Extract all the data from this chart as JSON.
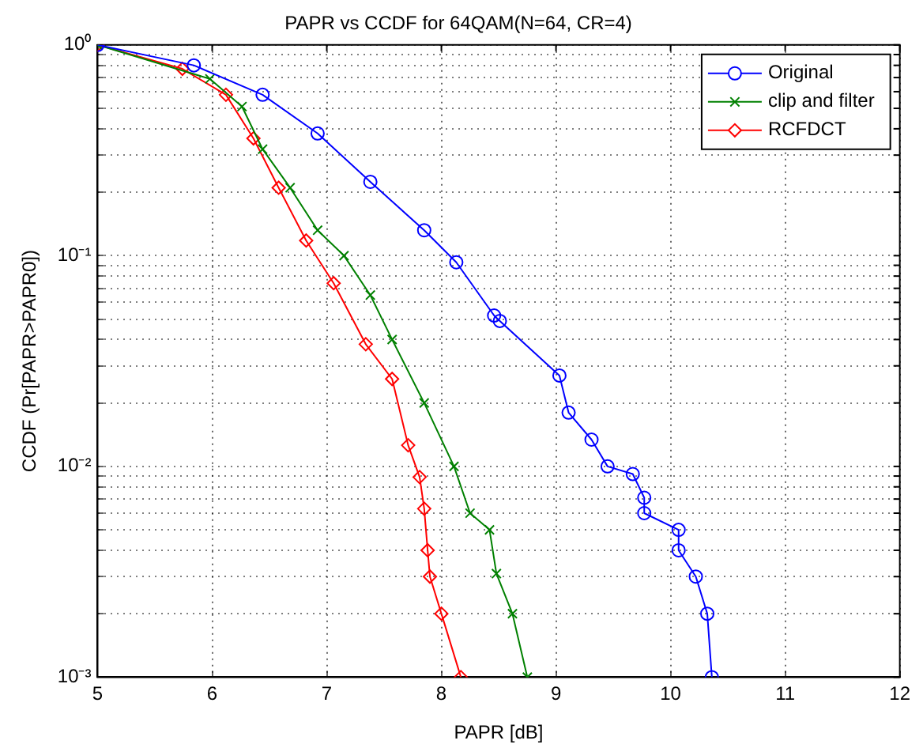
{
  "chart_data": {
    "type": "line",
    "title": "PAPR vs CCDF for 64QAM(N=64, CR=4)",
    "xlabel": "PAPR [dB]",
    "ylabel": "CCDF (Pr[PAPR>PAPR0])",
    "log": "y",
    "grid": true,
    "legend": "top right",
    "line_style": "solid",
    "xlim": [
      5,
      12
    ],
    "xticks": [
      5,
      6,
      7,
      8,
      9,
      10,
      11,
      12
    ],
    "ylim": [
      0.001,
      1
    ],
    "yticks": [
      {
        "value": 0.001,
        "label": "10⁻³"
      },
      {
        "value": 0.002,
        "label": null
      },
      {
        "value": 0.003,
        "label": null
      },
      {
        "value": 0.004,
        "label": null
      },
      {
        "value": 0.005,
        "label": null
      },
      {
        "value": 0.006,
        "label": null
      },
      {
        "value": 0.007,
        "label": null
      },
      {
        "value": 0.008,
        "label": null
      },
      {
        "value": 0.009,
        "label": null
      },
      {
        "value": 0.01,
        "label": "10⁻²"
      },
      {
        "value": 0.02,
        "label": null
      },
      {
        "value": 0.03,
        "label": null
      },
      {
        "value": 0.04,
        "label": null
      },
      {
        "value": 0.05,
        "label": null
      },
      {
        "value": 0.06,
        "label": null
      },
      {
        "value": 0.07,
        "label": null
      },
      {
        "value": 0.08,
        "label": null
      },
      {
        "value": 0.09,
        "label": null
      },
      {
        "value": 0.1,
        "label": "10⁻¹"
      },
      {
        "value": 0.2,
        "label": null
      },
      {
        "value": 0.3,
        "label": null
      },
      {
        "value": 0.4,
        "label": null
      },
      {
        "value": 0.5,
        "label": null
      },
      {
        "value": 0.6,
        "label": null
      },
      {
        "value": 0.7,
        "label": null
      },
      {
        "value": 0.8,
        "label": null
      },
      {
        "value": 0.9,
        "label": null
      },
      {
        "value": 1,
        "label": "10⁰"
      }
    ],
    "series": [
      {
        "name": "Original",
        "color": "#0000ff",
        "marker": "circle",
        "x": [
          5,
          5.84,
          6.44,
          6.92,
          7.38,
          7.85,
          8.13,
          8.46,
          8.51,
          9.03,
          9.11,
          9.31,
          9.45,
          9.67,
          9.77,
          9.77,
          10.07,
          10.07,
          10.22,
          10.32,
          10.36
        ],
        "values": [
          1,
          0.8,
          0.58,
          0.38,
          0.224,
          0.132,
          0.093,
          0.052,
          0.049,
          0.027,
          0.018,
          0.0134,
          0.01,
          0.0092,
          0.0071,
          0.006,
          0.005,
          0.004,
          0.003,
          0.002,
          0.001
        ]
      },
      {
        "name": "clip and filter",
        "color": "#008000",
        "marker": "cross",
        "x": [
          5,
          5.98,
          6.26,
          6.44,
          6.68,
          6.92,
          7.15,
          7.38,
          7.57,
          7.85,
          8.11,
          8.25,
          8.42,
          8.48,
          8.62,
          8.75
        ],
        "values": [
          1,
          0.69,
          0.51,
          0.32,
          0.21,
          0.132,
          0.1,
          0.065,
          0.04,
          0.02,
          0.01,
          0.006,
          0.005,
          0.0031,
          0.002,
          0.001
        ]
      },
      {
        "name": "RCFDCT",
        "color": "#ff0000",
        "marker": "diamond",
        "x": [
          5,
          5.74,
          6.12,
          6.36,
          6.58,
          6.82,
          7.06,
          7.34,
          7.57,
          7.71,
          7.81,
          7.85,
          7.88,
          7.9,
          8,
          8.17
        ],
        "values": [
          1,
          0.77,
          0.58,
          0.36,
          0.21,
          0.118,
          0.074,
          0.038,
          0.026,
          0.0126,
          0.0089,
          0.0063,
          0.004,
          0.003,
          0.002,
          0.001
        ]
      }
    ]
  }
}
